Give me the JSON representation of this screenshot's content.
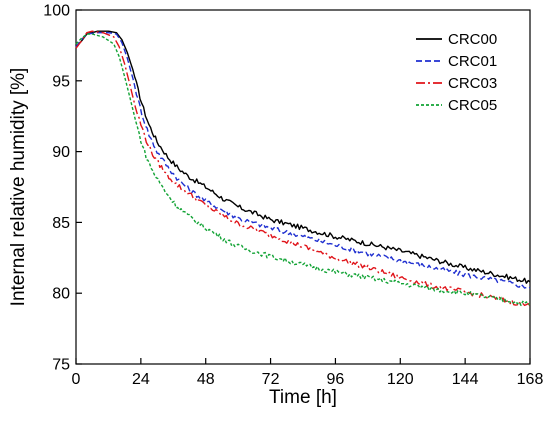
{
  "chart_data": {
    "type": "line",
    "xlabel": "Time [h]",
    "ylabel": "Internal relative humidity [%]",
    "xlim": [
      0,
      168
    ],
    "ylim": [
      75,
      100
    ],
    "xticks": [
      0,
      24,
      48,
      72,
      96,
      120,
      144,
      168
    ],
    "yticks": [
      75,
      80,
      85,
      90,
      95,
      100
    ],
    "grid": false,
    "legend_position": "top-right",
    "series": [
      {
        "name": "CRC00",
        "color": "#000000",
        "dash": "solid",
        "x": [
          0,
          2,
          4,
          8,
          12,
          15,
          17,
          19,
          21,
          23,
          25,
          27,
          30,
          34,
          38,
          42,
          48,
          55,
          60,
          72,
          84,
          96,
          108,
          120,
          132,
          144,
          156,
          168
        ],
        "y": [
          97.4,
          97.8,
          98.3,
          98.5,
          98.5,
          98.4,
          97.9,
          97.0,
          95.8,
          94.3,
          93.0,
          91.9,
          90.7,
          89.6,
          88.8,
          88.2,
          87.5,
          86.6,
          86.1,
          85.2,
          84.6,
          84.0,
          83.5,
          83.0,
          82.4,
          81.8,
          81.3,
          80.8
        ]
      },
      {
        "name": "CRC01",
        "color": "#1f2fd0",
        "dash": "dashed",
        "x": [
          0,
          2,
          4,
          8,
          12,
          15,
          17,
          19,
          21,
          23,
          25,
          27,
          30,
          34,
          38,
          42,
          48,
          55,
          60,
          72,
          84,
          96,
          108,
          120,
          132,
          144,
          156,
          168
        ],
        "y": [
          97.4,
          97.9,
          98.3,
          98.4,
          98.4,
          98.3,
          97.7,
          96.6,
          95.2,
          93.6,
          92.3,
          91.2,
          90.0,
          88.9,
          88.0,
          87.3,
          86.5,
          85.8,
          85.3,
          84.6,
          84.0,
          83.4,
          82.8,
          82.3,
          81.8,
          81.3,
          80.9,
          80.4
        ]
      },
      {
        "name": "CRC03",
        "color": "#e0141a",
        "dash": "dashdot",
        "x": [
          0,
          2,
          4,
          6,
          10,
          14,
          16,
          18,
          20,
          22,
          24,
          26,
          29,
          33,
          37,
          42,
          48,
          55,
          60,
          72,
          84,
          96,
          108,
          120,
          132,
          144,
          156,
          168
        ],
        "y": [
          97.3,
          97.8,
          98.4,
          98.5,
          98.4,
          98.1,
          97.4,
          96.2,
          94.7,
          93.1,
          91.9,
          90.8,
          89.6,
          88.5,
          87.7,
          87.0,
          86.2,
          85.4,
          84.9,
          84.1,
          83.3,
          82.5,
          81.8,
          81.1,
          80.5,
          80.1,
          79.6,
          79.1
        ]
      },
      {
        "name": "CRC05",
        "color": "#12a335",
        "dash": "dotted",
        "x": [
          0,
          2,
          4,
          6,
          10,
          14,
          16,
          18,
          20,
          22,
          24,
          26,
          29,
          33,
          37,
          42,
          48,
          55,
          60,
          72,
          84,
          96,
          108,
          120,
          132,
          144,
          156,
          168
        ],
        "y": [
          97.6,
          98.0,
          98.3,
          98.3,
          98.1,
          97.6,
          96.7,
          95.3,
          93.8,
          92.2,
          90.8,
          89.6,
          88.4,
          87.2,
          86.2,
          85.4,
          84.6,
          83.8,
          83.3,
          82.6,
          82.0,
          81.5,
          81.1,
          80.7,
          80.3,
          80.0,
          79.6,
          79.2
        ]
      }
    ]
  }
}
